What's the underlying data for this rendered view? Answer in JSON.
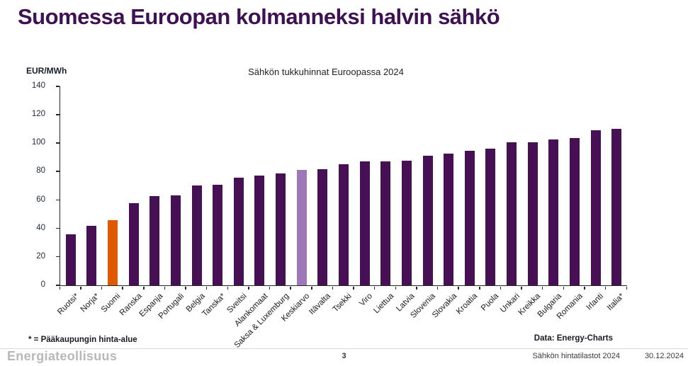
{
  "page": {
    "title": "Suomessa Euroopan kolmanneksi halvin sähkö",
    "footnote": "* = Pääkaupungin hinta-alue",
    "data_source": "Data: Energy-Charts",
    "footer": {
      "logo": "Energiateollisuus",
      "page_number": "3",
      "report": "Sähkön hintatilastot 2024",
      "date": "30.12.2024"
    }
  },
  "chart_data": {
    "type": "bar",
    "title": "Sähkön tukkuhinnat Euroopassa 2024",
    "xlabel": "",
    "ylabel": "EUR/MWh",
    "ylim": [
      0,
      140
    ],
    "ytick_step": 20,
    "grid": false,
    "legend": "none",
    "categories": [
      "Ruotsi*",
      "Norja*",
      "Suomi",
      "Ranska",
      "Espanja",
      "Portugali",
      "Belgia",
      "Tanska*",
      "Sveitsi",
      "Alankomaat",
      "Saksa & Luxemburg",
      "Keskiarvo",
      "Itävalta",
      "Tsekki",
      "Viro",
      "Liettua",
      "Latvia",
      "Slovenia",
      "Slovakia",
      "Kroatia",
      "Puola",
      "Unkari",
      "Kreikka",
      "Bulgaria",
      "Romania",
      "Irlanti",
      "Italia*"
    ],
    "values": [
      36,
      42,
      45.7,
      58,
      63,
      63.5,
      70.3,
      71,
      75.9,
      77.3,
      78.5,
      81.2,
      81.7,
      85.2,
      87.3,
      87.3,
      87.5,
      91.2,
      92.7,
      94.7,
      96.4,
      100.5,
      100.8,
      102.7,
      103.8,
      109.3,
      110
    ],
    "colors": {
      "default_bar": "#471054",
      "highlight_bar": "#dd5a00",
      "average_bar": "#9e77b8",
      "title_accent": "#3d1152"
    },
    "highlight_category": "Suomi",
    "average_category": "Keskiarvo"
  }
}
